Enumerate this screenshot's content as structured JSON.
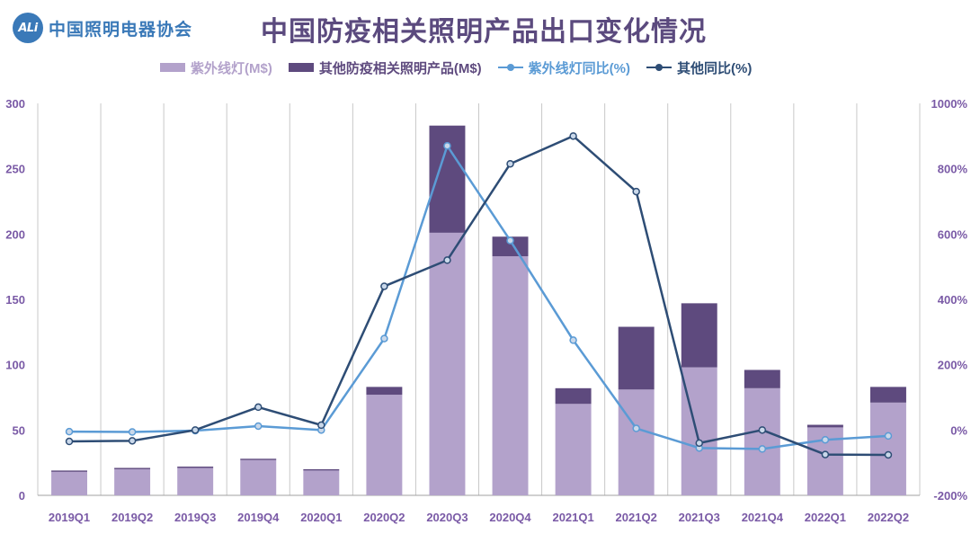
{
  "header": {
    "logo_mark": "ALi",
    "logo_text": "中国照明电器协会",
    "title": "中国防疫相关照明产品出口变化情况"
  },
  "colors": {
    "uv_bar": "#b3a2cb",
    "other_bar": "#5e4a7e",
    "uv_line": "#5b9bd5",
    "other_line": "#2e4d75",
    "axis_text": "#7a5aa6",
    "grid": "#c8c8c8"
  },
  "chart_data": {
    "type": "bar",
    "title": "中国防疫相关照明产品出口变化情况",
    "categories": [
      "2019Q1",
      "2019Q2",
      "2019Q3",
      "2019Q4",
      "2020Q1",
      "2020Q2",
      "2020Q3",
      "2020Q4",
      "2021Q1",
      "2021Q2",
      "2021Q3",
      "2021Q4",
      "2022Q1",
      "2022Q2"
    ],
    "bar_series": [
      {
        "name": "紫外线灯(M$)",
        "values": [
          18,
          20,
          21,
          27,
          19,
          77,
          201,
          183,
          70,
          81,
          98,
          82,
          52,
          71
        ]
      },
      {
        "name": "其他防疫相关照明产品(M$)",
        "values": [
          1,
          1,
          1,
          1,
          1,
          6,
          82,
          15,
          12,
          48,
          49,
          14,
          2,
          12
        ]
      }
    ],
    "line_series": [
      {
        "name": "紫外线灯同比(%)",
        "values": [
          -5,
          -6,
          -2,
          12,
          0,
          280,
          870,
          580,
          275,
          5,
          -55,
          -58,
          -30,
          -18
        ]
      },
      {
        "name": "其他同比(%)",
        "values": [
          -35,
          -33,
          0,
          70,
          15,
          440,
          520,
          815,
          900,
          730,
          -40,
          0,
          -75,
          -76
        ]
      }
    ],
    "left_axis": {
      "ylim": [
        0,
        300
      ],
      "ticks": [
        "0",
        "50",
        "100",
        "150",
        "200",
        "250",
        "300"
      ]
    },
    "right_axis": {
      "ylim": [
        -200,
        1000
      ],
      "ticks": [
        "-200%",
        "0%",
        "200%",
        "400%",
        "600%",
        "800%",
        "1000%"
      ]
    },
    "legend_position": "top",
    "grid": "vertical"
  }
}
